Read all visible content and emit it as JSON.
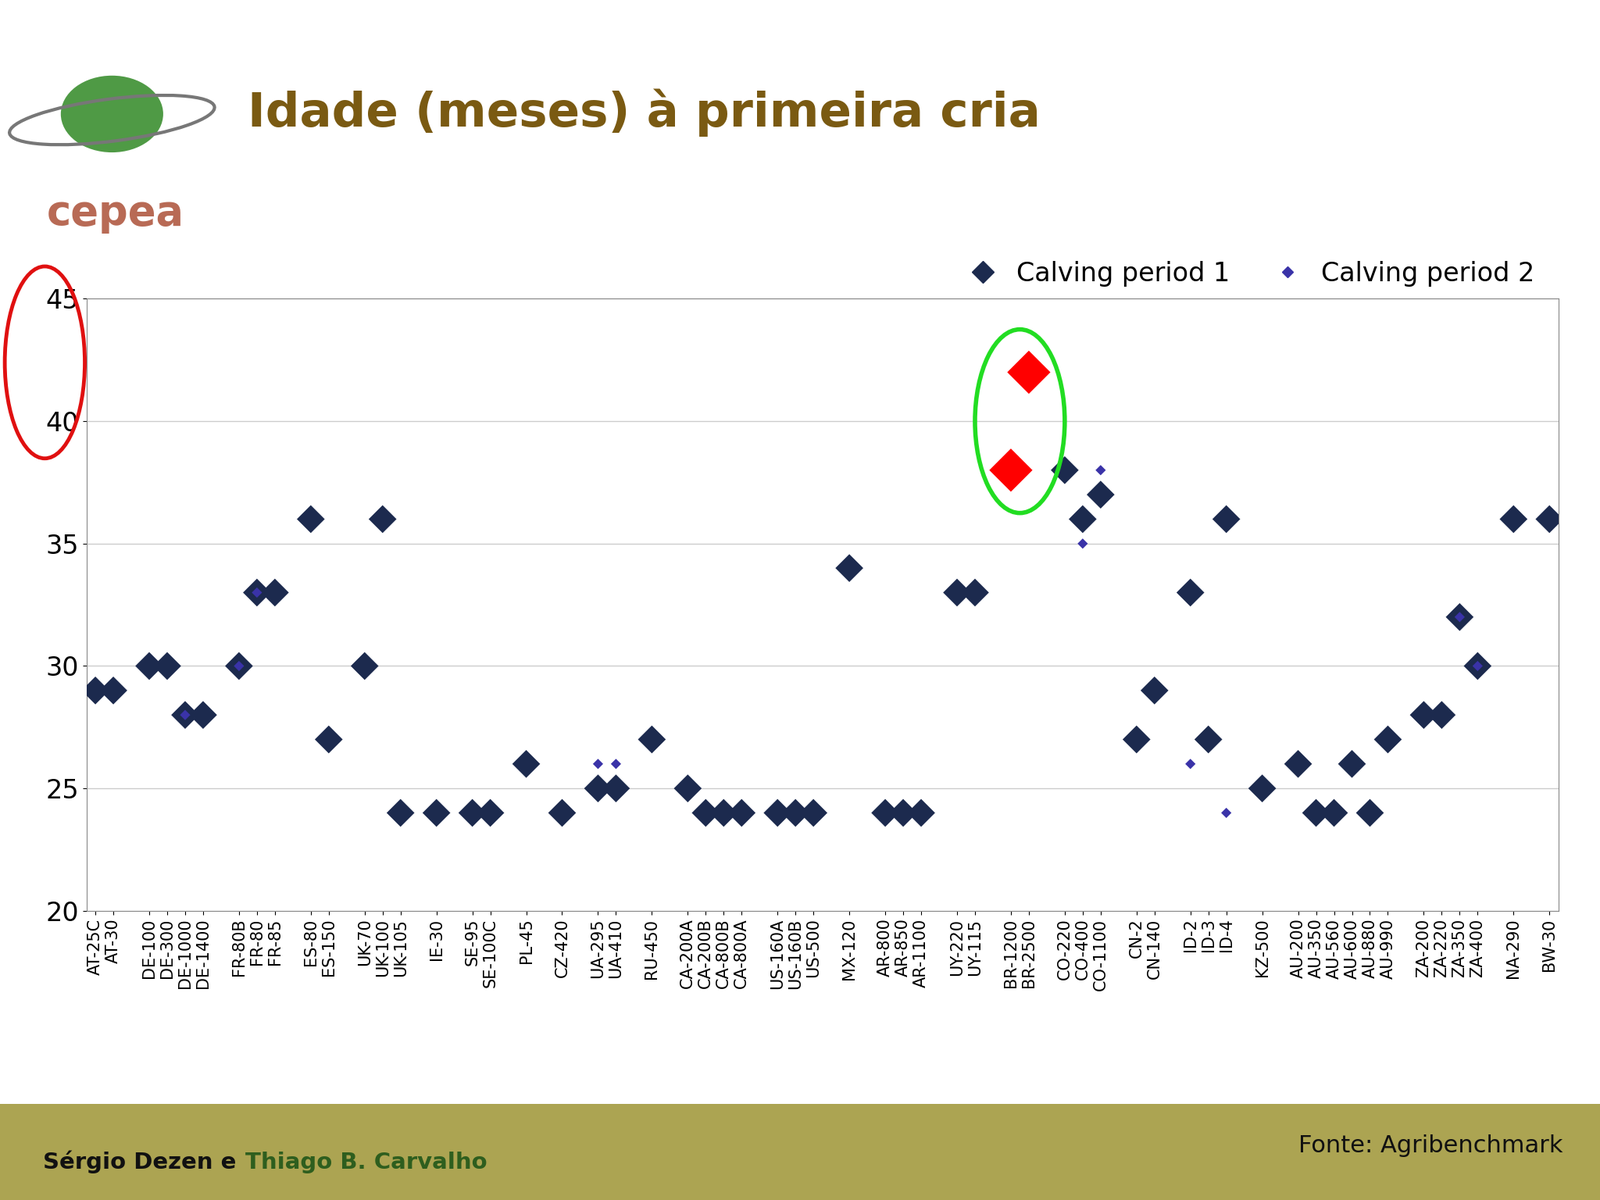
{
  "chart_data": {
    "type": "scatter",
    "title": "Idade (meses) à primeira cria",
    "categories": [
      "AT-25C",
      "AT-30",
      null,
      "DE-100",
      "DE-300",
      "DE-1000",
      "DE-1400",
      null,
      "FR-80B",
      "FR-80",
      "FR-85",
      null,
      "ES-80",
      "ES-150",
      null,
      "UK-70",
      "UK-100",
      "UK-105",
      null,
      "IE-30",
      null,
      "SE-95",
      "SE-100C",
      null,
      "PL-45",
      null,
      "CZ-420",
      null,
      "UA-295",
      "UA-410",
      null,
      "RU-450",
      null,
      "CA-200A",
      "CA-200B",
      "CA-800B",
      "CA-800A",
      null,
      "US-160A",
      "US-160B",
      "US-500",
      null,
      "MX-120",
      null,
      "AR-800",
      "AR-850",
      "AR-1100",
      null,
      "UY-220",
      "UY-115",
      null,
      "BR-1200",
      "BR-2500",
      null,
      "CO-220",
      "CO-400",
      "CO-1100",
      null,
      "CN-2",
      "CN-140",
      null,
      "ID-2",
      "ID-3",
      "ID-4",
      null,
      "KZ-500",
      null,
      "AU-200",
      "AU-350",
      "AU-560",
      "AU-600",
      "AU-880",
      "AU-990",
      null,
      "ZA-200",
      "ZA-220",
      "ZA-350",
      "ZA-400",
      null,
      "NA-290",
      null,
      "BW-30"
    ],
    "series": [
      {
        "name": "Calving period 1",
        "marker": "diamond",
        "values": [
          29,
          29,
          null,
          30,
          30,
          28,
          28,
          null,
          30,
          33,
          33,
          null,
          36,
          27,
          null,
          30,
          36,
          24,
          null,
          24,
          null,
          24,
          24,
          null,
          26,
          null,
          24,
          null,
          25,
          25,
          null,
          27,
          null,
          25,
          24,
          24,
          24,
          null,
          24,
          24,
          24,
          null,
          34,
          null,
          24,
          24,
          24,
          null,
          33,
          33,
          null,
          38,
          42,
          null,
          38,
          36,
          37,
          null,
          27,
          29,
          null,
          33,
          27,
          36,
          null,
          25,
          null,
          26,
          24,
          24,
          26,
          24,
          27,
          null,
          28,
          28,
          32,
          30,
          null,
          36,
          null,
          36
        ],
        "colors": [
          "#1c2a4e",
          "#1c2a4e",
          null,
          "#1c2a4e",
          "#1c2a4e",
          "#1c2a4e",
          "#1c2a4e",
          null,
          "#1c2a4e",
          "#1c2a4e",
          "#1c2a4e",
          null,
          "#1c2a4e",
          "#1c2a4e",
          null,
          "#1c2a4e",
          "#1c2a4e",
          "#1c2a4e",
          null,
          "#1c2a4e",
          null,
          "#1c2a4e",
          "#1c2a4e",
          null,
          "#1c2a4e",
          null,
          "#1c2a4e",
          null,
          "#1c2a4e",
          "#1c2a4e",
          null,
          "#1c2a4e",
          null,
          "#1c2a4e",
          "#1c2a4e",
          "#1c2a4e",
          "#1c2a4e",
          null,
          "#1c2a4e",
          "#1c2a4e",
          "#1c2a4e",
          null,
          "#1c2a4e",
          null,
          "#1c2a4e",
          "#1c2a4e",
          "#1c2a4e",
          null,
          "#1c2a4e",
          "#1c2a4e",
          null,
          "#ff0000",
          "#ff0000",
          null,
          "#1c2a4e",
          "#1c2a4e",
          "#1c2a4e",
          null,
          "#1c2a4e",
          "#1c2a4e",
          null,
          "#1c2a4e",
          "#1c2a4e",
          "#1c2a4e",
          null,
          "#1c2a4e",
          null,
          "#1c2a4e",
          "#1c2a4e",
          "#1c2a4e",
          "#1c2a4e",
          "#1c2a4e",
          "#1c2a4e",
          null,
          "#1c2a4e",
          "#1c2a4e",
          "#1c2a4e",
          "#1c2a4e",
          null,
          "#1c2a4e",
          null,
          "#1c2a4e"
        ]
      },
      {
        "name": "Calving period 2",
        "marker": "diamond",
        "color": "#3a33a8",
        "values": [
          null,
          null,
          null,
          null,
          null,
          28,
          null,
          null,
          30,
          33,
          null,
          null,
          null,
          null,
          null,
          null,
          null,
          null,
          null,
          null,
          null,
          null,
          null,
          null,
          null,
          null,
          null,
          null,
          26,
          26,
          null,
          null,
          null,
          null,
          null,
          null,
          null,
          null,
          null,
          null,
          null,
          null,
          null,
          null,
          null,
          null,
          null,
          null,
          null,
          null,
          null,
          null,
          null,
          null,
          null,
          35,
          38,
          null,
          null,
          null,
          null,
          26,
          null,
          24,
          null,
          null,
          null,
          null,
          null,
          null,
          null,
          null,
          null,
          null,
          null,
          null,
          32,
          30,
          null,
          null,
          null,
          null
        ]
      }
    ],
    "ylim": [
      20,
      45
    ],
    "yticks": [
      20,
      25,
      30,
      35,
      40,
      45
    ],
    "grid": true,
    "legend": "upper right"
  },
  "logo_text": "cepea",
  "footer": {
    "authors_1": "Sérgio Dezen e",
    "authors_2": "Thiago B. Carvalho",
    "source": "Fonte: Agribenchmark"
  }
}
